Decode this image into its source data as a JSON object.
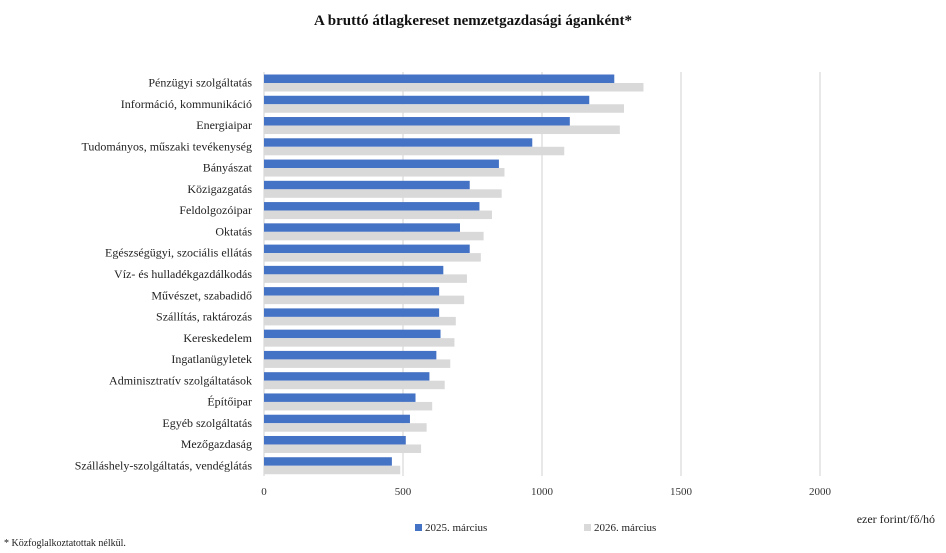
{
  "chart_data": {
    "type": "bar",
    "orientation": "horizontal",
    "title": "A bruttó átlagkereset nemzetgazdasági áganként*",
    "xlabel": "ezer forint/fő/hó",
    "ylabel": "",
    "xlim": [
      0,
      2000
    ],
    "xticks": [
      0,
      500,
      1000,
      1500,
      2000
    ],
    "grid": "vertical",
    "legend": "bottom",
    "categories": [
      "Pénzügyi szolgáltatás",
      "Információ, kommunikáció",
      "Energiaipar",
      "Tudományos, műszaki tevékenység",
      "Bányászat",
      "Közigazgatás",
      "Feldolgozóipar",
      "Oktatás",
      "Egészségügyi, szociális ellátás",
      "Víz- és hulladékgazdálkodás",
      "Művészet, szabadidő",
      "Szállítás, raktározás",
      "Kereskedelem",
      "Ingatlanügyletek",
      "Adminisztratív szolgáltatások",
      "Építőipar",
      "Egyéb szolgáltatás",
      "Mezőgazdaság",
      "Szálláshely-szolgáltatás, vendéglátás"
    ],
    "series": [
      {
        "name": "2025. március",
        "color": "#4472c4",
        "values": [
          1260,
          1170,
          1100,
          965,
          845,
          740,
          775,
          705,
          740,
          645,
          630,
          630,
          635,
          620,
          595,
          545,
          525,
          510,
          460
        ]
      },
      {
        "name": "2026. március",
        "color": "#d9d9d9",
        "values": [
          1365,
          1295,
          1280,
          1080,
          865,
          855,
          820,
          790,
          780,
          730,
          720,
          690,
          685,
          670,
          650,
          605,
          585,
          565,
          490
        ]
      }
    ]
  },
  "footnote": "* Közfoglalkoztatottak nélkül."
}
